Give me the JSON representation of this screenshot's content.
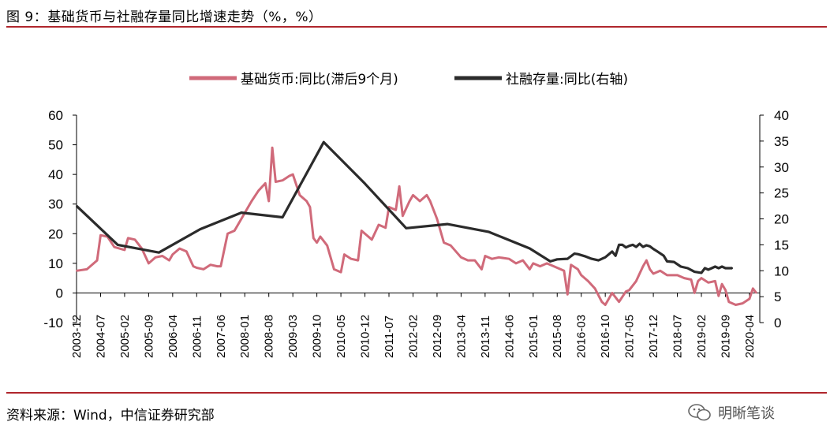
{
  "header": {
    "title": "图 9：基础货币与社融存量同比增速走势（%，%）"
  },
  "footer": {
    "source": "资料来源：Wind，中信证券研究部",
    "watermark": "明晰笔谈"
  },
  "colors": {
    "accent_rule": "#b0262c",
    "series_base_money": "#d06a7a",
    "series_tsf": "#2b2b2b"
  },
  "chart_data": {
    "type": "line",
    "legend": {
      "position": "top-center",
      "entries": [
        "基础货币:同比(滞后9个月)",
        "社融存量:同比(右轴)"
      ]
    },
    "left_axis": {
      "ylim": [
        -10,
        60
      ],
      "ticks": [
        "60",
        "50",
        "40",
        "30",
        "20",
        "10",
        "0",
        "-10"
      ]
    },
    "right_axis": {
      "ylim": [
        0,
        40
      ],
      "ticks": [
        "40",
        "35",
        "30",
        "25",
        "20",
        "15",
        "10",
        "5",
        "0"
      ]
    },
    "x_ticks": [
      "2003-12",
      "2004-07",
      "2005-02",
      "2005-09",
      "2006-04",
      "2006-11",
      "2007-06",
      "2008-01",
      "2008-08",
      "2009-03",
      "2009-10",
      "2010-05",
      "2010-12",
      "2011-07",
      "2012-02",
      "2012-09",
      "2013-04",
      "2013-11",
      "2014-06",
      "2015-01",
      "2015-08",
      "2016-03",
      "2016-10",
      "2017-05",
      "2017-12",
      "2018-07",
      "2019-02",
      "2019-09",
      "2020-04"
    ],
    "series": [
      {
        "name": "基础货币:同比(滞后9个月)",
        "axis": "left",
        "points": [
          [
            "2003-12",
            7.5
          ],
          [
            "2004-03",
            8.0
          ],
          [
            "2004-06",
            11.0
          ],
          [
            "2004-07",
            19.5
          ],
          [
            "2004-09",
            19.0
          ],
          [
            "2004-11",
            15.5
          ],
          [
            "2005-02",
            14.5
          ],
          [
            "2005-03",
            18.5
          ],
          [
            "2005-05",
            18.0
          ],
          [
            "2005-07",
            15.0
          ],
          [
            "2005-09",
            10.0
          ],
          [
            "2005-11",
            12.0
          ],
          [
            "2006-01",
            12.5
          ],
          [
            "2006-03",
            11.0
          ],
          [
            "2006-04",
            13.0
          ],
          [
            "2006-06",
            15.0
          ],
          [
            "2006-08",
            14.0
          ],
          [
            "2006-10",
            9.0
          ],
          [
            "2006-11",
            8.5
          ],
          [
            "2007-01",
            8.0
          ],
          [
            "2007-03",
            9.5
          ],
          [
            "2007-05",
            9.0
          ],
          [
            "2007-06",
            9.0
          ],
          [
            "2007-08",
            20.0
          ],
          [
            "2007-10",
            21.0
          ],
          [
            "2007-12",
            25.0
          ],
          [
            "2008-01",
            27.0
          ],
          [
            "2008-03",
            31.0
          ],
          [
            "2008-05",
            34.5
          ],
          [
            "2008-07",
            37.0
          ],
          [
            "2008-08",
            31.0
          ],
          [
            "2008-09",
            49.0
          ],
          [
            "2008-10",
            37.5
          ],
          [
            "2008-12",
            38.0
          ],
          [
            "2009-02",
            39.5
          ],
          [
            "2009-03",
            40.0
          ],
          [
            "2009-05",
            33.0
          ],
          [
            "2009-07",
            31.0
          ],
          [
            "2009-08",
            29.0
          ],
          [
            "2009-09",
            18.5
          ],
          [
            "2009-10",
            17.0
          ],
          [
            "2009-11",
            19.0
          ],
          [
            "2010-01",
            16.0
          ],
          [
            "2010-03",
            8.0
          ],
          [
            "2010-05",
            7.0
          ],
          [
            "2010-06",
            13.0
          ],
          [
            "2010-08",
            11.5
          ],
          [
            "2010-10",
            11.0
          ],
          [
            "2010-11",
            21.0
          ],
          [
            "2010-12",
            20.0
          ],
          [
            "2011-02",
            18.0
          ],
          [
            "2011-04",
            23.0
          ],
          [
            "2011-06",
            22.0
          ],
          [
            "2011-07",
            29.0
          ],
          [
            "2011-09",
            28.0
          ],
          [
            "2011-10",
            36.0
          ],
          [
            "2011-11",
            26.0
          ],
          [
            "2012-01",
            31.0
          ],
          [
            "2012-02",
            33.0
          ],
          [
            "2012-04",
            31.0
          ],
          [
            "2012-06",
            33.0
          ],
          [
            "2012-07",
            31.0
          ],
          [
            "2012-09",
            25.0
          ],
          [
            "2012-11",
            17.0
          ],
          [
            "2013-01",
            16.0
          ],
          [
            "2013-04",
            12.0
          ],
          [
            "2013-06",
            11.0
          ],
          [
            "2013-08",
            11.0
          ],
          [
            "2013-10",
            8.0
          ],
          [
            "2013-11",
            12.5
          ],
          [
            "2014-01",
            11.5
          ],
          [
            "2014-03",
            12.0
          ],
          [
            "2014-06",
            11.5
          ],
          [
            "2014-08",
            10.0
          ],
          [
            "2014-10",
            11.0
          ],
          [
            "2014-12",
            8.0
          ],
          [
            "2015-01",
            10.0
          ],
          [
            "2015-03",
            9.0
          ],
          [
            "2015-05",
            10.0
          ],
          [
            "2015-08",
            8.5
          ],
          [
            "2015-10",
            7.5
          ],
          [
            "2015-11",
            -0.5
          ],
          [
            "2015-12",
            9.5
          ],
          [
            "2016-02",
            8.0
          ],
          [
            "2016-03",
            6.0
          ],
          [
            "2016-05",
            4.0
          ],
          [
            "2016-07",
            1.5
          ],
          [
            "2016-09",
            -3.0
          ],
          [
            "2016-10",
            -4.0
          ],
          [
            "2016-12",
            0.0
          ],
          [
            "2017-02",
            -3.0
          ],
          [
            "2017-04",
            0.5
          ],
          [
            "2017-05",
            1.0
          ],
          [
            "2017-07",
            4.0
          ],
          [
            "2017-09",
            9.0
          ],
          [
            "2017-10",
            11.0
          ],
          [
            "2017-11",
            8.0
          ],
          [
            "2017-12",
            6.5
          ],
          [
            "2018-02",
            7.5
          ],
          [
            "2018-04",
            6.0
          ],
          [
            "2018-07",
            6.0
          ],
          [
            "2018-09",
            5.0
          ],
          [
            "2018-11",
            4.5
          ],
          [
            "2018-12",
            0.0
          ],
          [
            "2019-01",
            4.0
          ],
          [
            "2019-02",
            5.0
          ],
          [
            "2019-04",
            3.5
          ],
          [
            "2019-06",
            4.0
          ],
          [
            "2019-07",
            -1.0
          ],
          [
            "2019-08",
            3.0
          ],
          [
            "2019-09",
            1.0
          ],
          [
            "2019-10",
            -3.0
          ],
          [
            "2019-12",
            -4.0
          ],
          [
            "2020-02",
            -3.5
          ],
          [
            "2020-04",
            -2.0
          ],
          [
            "2020-05",
            1.5
          ],
          [
            "2020-06",
            0.0
          ]
        ]
      },
      {
        "name": "社融存量:同比(右轴)",
        "axis": "right",
        "points": [
          [
            "2003-12",
            22.5
          ],
          [
            "2004-12",
            15.0
          ],
          [
            "2005-12",
            13.5
          ],
          [
            "2006-12",
            18.0
          ],
          [
            "2007-12",
            21.2
          ],
          [
            "2008-12",
            20.3
          ],
          [
            "2009-12",
            34.8
          ],
          [
            "2010-12",
            26.8
          ],
          [
            "2011-12",
            18.2
          ],
          [
            "2012-12",
            19.0
          ],
          [
            "2013-12",
            17.5
          ],
          [
            "2014-12",
            14.3
          ],
          [
            "2015-06",
            11.8
          ],
          [
            "2015-08",
            12.2
          ],
          [
            "2015-11",
            12.3
          ],
          [
            "2016-01",
            13.3
          ],
          [
            "2016-02",
            13.2
          ],
          [
            "2016-04",
            12.8
          ],
          [
            "2016-06",
            12.3
          ],
          [
            "2016-08",
            12.0
          ],
          [
            "2016-10",
            12.6
          ],
          [
            "2016-12",
            13.7
          ],
          [
            "2017-01",
            12.9
          ],
          [
            "2017-02",
            15.0
          ],
          [
            "2017-03",
            15.0
          ],
          [
            "2017-04",
            14.5
          ],
          [
            "2017-05",
            14.8
          ],
          [
            "2017-06",
            15.0
          ],
          [
            "2017-07",
            14.6
          ],
          [
            "2017-08",
            15.2
          ],
          [
            "2017-09",
            14.6
          ],
          [
            "2017-10",
            14.9
          ],
          [
            "2017-11",
            14.7
          ],
          [
            "2017-12",
            14.2
          ],
          [
            "2018-01",
            13.8
          ],
          [
            "2018-03",
            12.9
          ],
          [
            "2018-04",
            11.8
          ],
          [
            "2018-06",
            11.7
          ],
          [
            "2018-08",
            10.8
          ],
          [
            "2018-10",
            10.5
          ],
          [
            "2018-12",
            9.8
          ],
          [
            "2019-02",
            9.6
          ],
          [
            "2019-03",
            10.5
          ],
          [
            "2019-04",
            10.2
          ],
          [
            "2019-05",
            10.5
          ],
          [
            "2019-06",
            10.8
          ],
          [
            "2019-07",
            10.5
          ],
          [
            "2019-08",
            10.8
          ],
          [
            "2019-09",
            10.5
          ],
          [
            "2019-11",
            10.5
          ]
        ]
      }
    ]
  }
}
